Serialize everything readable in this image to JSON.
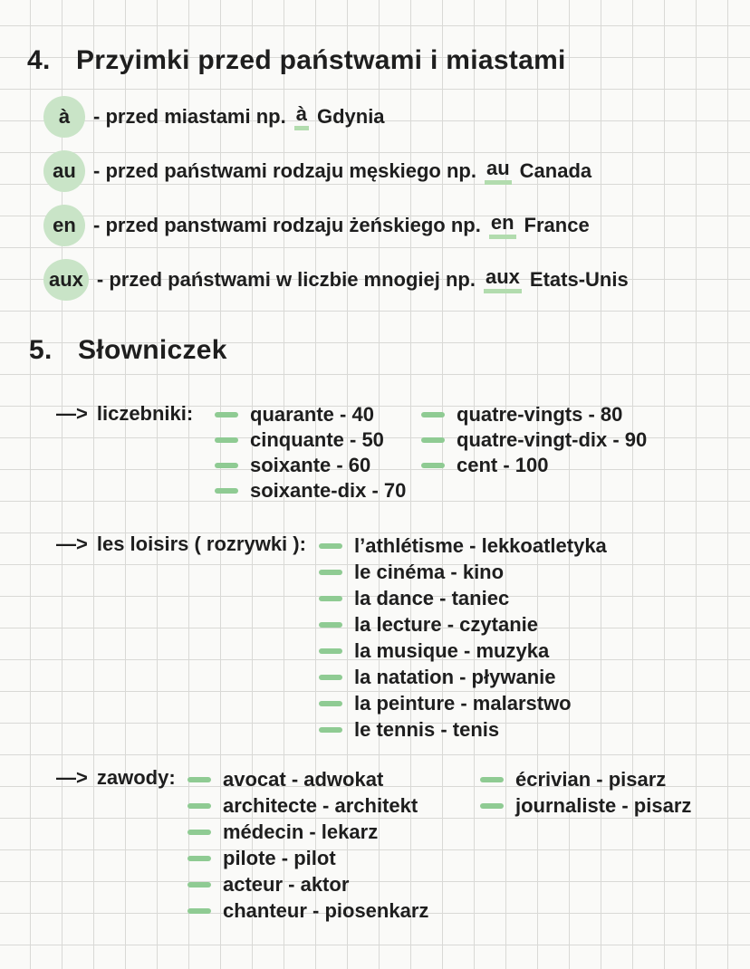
{
  "colors": {
    "ink": "#1e1e1e",
    "paper": "#fafaf8",
    "grid_line": "#d9d9d6",
    "highlight_circle_green": "#c9e4c7",
    "dash_green": "#8fcb93",
    "underline_green": "#b2dcae"
  },
  "section4": {
    "number": "4.",
    "title": "Przyimki przed państwami i miastami",
    "items": [
      {
        "term": "à",
        "mid": "- przed miastami np.",
        "hl": "à",
        "tail": "Gdynia"
      },
      {
        "term": "au",
        "mid": "- przed państwami rodzaju męskiego np.",
        "hl": "au",
        "tail": "Canada"
      },
      {
        "term": "en",
        "mid": "- przed panstwami rodzaju żeńskiego np.",
        "hl": "en",
        "tail": "France"
      },
      {
        "term": "aux",
        "mid": "- przed państwami w liczbie mnogiej np.",
        "hl": "aux",
        "tail": "Etats-Unis"
      }
    ]
  },
  "section5": {
    "number": "5.",
    "title": "Słowniczek",
    "groups": [
      {
        "arrow": "—>",
        "label": "liczebniki:",
        "columns": [
          [
            {
              "fr": "quarante",
              "pl": "40"
            },
            {
              "fr": "cinquante",
              "pl": "50"
            },
            {
              "fr": "soixante",
              "pl": "60"
            },
            {
              "fr": "soixante-dix",
              "pl": "70"
            }
          ],
          [
            {
              "fr": "quatre-vingts",
              "pl": "80"
            },
            {
              "fr": "quatre-vingt-dix",
              "pl": "90"
            },
            {
              "fr": "cent",
              "pl": "100"
            }
          ]
        ]
      },
      {
        "arrow": "—>",
        "label": "les loisirs ( rozrywki ):",
        "columns": [
          [
            {
              "fr": "l’athlétisme",
              "pl": "lekkoatletyka"
            },
            {
              "fr": "le cinéma",
              "pl": "kino"
            },
            {
              "fr": "la dance",
              "pl": "taniec"
            },
            {
              "fr": "la lecture",
              "pl": "czytanie"
            },
            {
              "fr": "la musique",
              "pl": "muzyka"
            },
            {
              "fr": "la natation",
              "pl": "pływanie"
            },
            {
              "fr": "la peinture",
              "pl": "malarstwo"
            },
            {
              "fr": "le tennis",
              "pl": "tenis"
            }
          ]
        ]
      },
      {
        "arrow": "—>",
        "label": "zawody:",
        "columns": [
          [
            {
              "fr": "avocat",
              "pl": "adwokat"
            },
            {
              "fr": "architecte",
              "pl": "architekt"
            },
            {
              "fr": "médecin",
              "pl": "lekarz"
            },
            {
              "fr": "pilote",
              "pl": "pilot"
            },
            {
              "fr": "acteur",
              "pl": "aktor"
            },
            {
              "fr": "chanteur",
              "pl": "piosenkarz"
            }
          ],
          [
            {
              "fr": "écrivian",
              "pl": "pisarz"
            },
            {
              "fr": "journaliste",
              "pl": "pisarz"
            }
          ]
        ]
      }
    ]
  }
}
